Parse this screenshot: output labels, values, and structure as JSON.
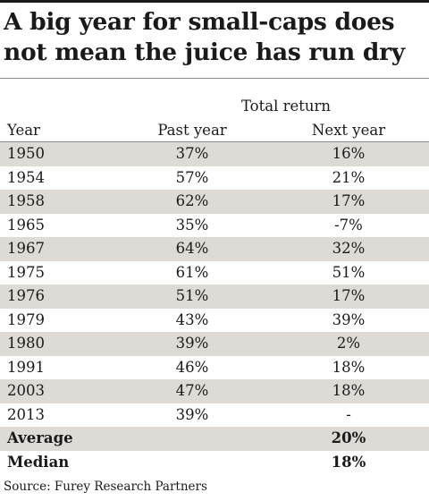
{
  "title": "A big year for small-caps does not mean the juice has run dry",
  "source": "Source: Furey Research Partners",
  "chart_data": {
    "type": "table",
    "group_header": "Total return",
    "columns": [
      "Year",
      "Past year",
      "Next year"
    ],
    "rows": [
      {
        "year": "1950",
        "past": "37%",
        "next": "16%"
      },
      {
        "year": "1954",
        "past": "57%",
        "next": "21%"
      },
      {
        "year": "1958",
        "past": "62%",
        "next": "17%"
      },
      {
        "year": "1965",
        "past": "35%",
        "next": "-7%"
      },
      {
        "year": "1967",
        "past": "64%",
        "next": "32%"
      },
      {
        "year": "1975",
        "past": "61%",
        "next": "51%"
      },
      {
        "year": "1976",
        "past": "51%",
        "next": "17%"
      },
      {
        "year": "1979",
        "past": "43%",
        "next": "39%"
      },
      {
        "year": "1980",
        "past": "39%",
        "next": "2%"
      },
      {
        "year": "1991",
        "past": "46%",
        "next": "18%"
      },
      {
        "year": "2003",
        "past": "47%",
        "next": "18%"
      },
      {
        "year": "2013",
        "past": "39%",
        "next": "-"
      }
    ],
    "summary": [
      {
        "label": "Average",
        "past": "",
        "next": "20%"
      },
      {
        "label": "Median",
        "past": "",
        "next": "18%"
      }
    ],
    "row_shading_color": "#dedad6"
  }
}
